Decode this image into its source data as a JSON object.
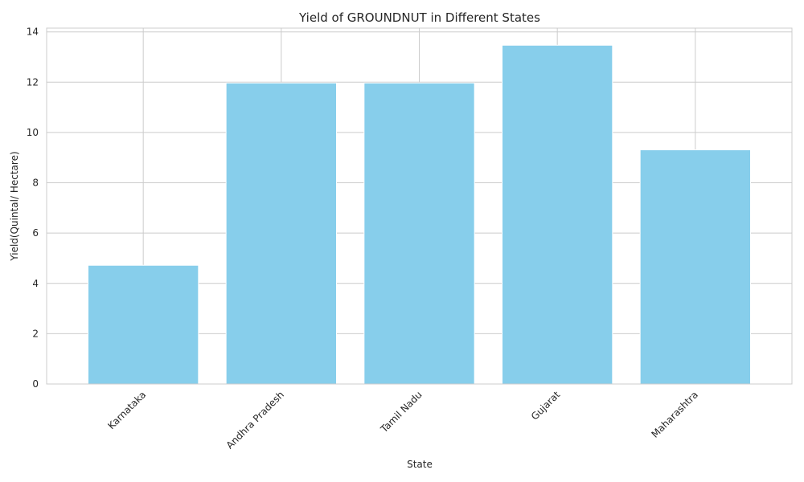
{
  "chart_data": {
    "type": "bar",
    "title": "Yield of GROUNDNUT in Different States",
    "xlabel": "State",
    "ylabel": "Yield(Quintal/ Hectare)",
    "categories": [
      "Karnataka",
      "Andhra Pradesh",
      "Tamil Nadu",
      "Gujarat",
      "Maharashtra"
    ],
    "values": [
      4.72,
      11.97,
      11.97,
      13.47,
      9.31
    ],
    "ylim": [
      0,
      14.15
    ],
    "yticks": [
      0,
      2,
      4,
      6,
      8,
      10,
      12,
      14
    ],
    "grid": true,
    "bar_color": "#87ceeb",
    "xtick_rotation_deg": 45
  }
}
